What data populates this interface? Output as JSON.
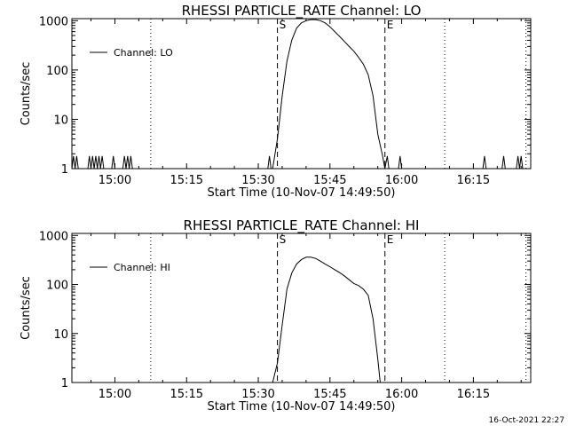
{
  "footer": {
    "timestamp": "16-Oct-2021 22:27"
  },
  "chart_data": [
    {
      "type": "line",
      "title": "RHESSI PARTICLE_RATE Channel: LO",
      "xlabel": "Start Time (10-Nov-07 14:49:50)",
      "ylabel": "Counts/sec",
      "yscale": "log",
      "xlim": [
        "14:51:00",
        "16:27:00"
      ],
      "ylim": [
        1,
        1100
      ],
      "x_ticks": [
        "15:00",
        "15:15",
        "15:30",
        "15:45",
        "16:00",
        "16:15"
      ],
      "y_ticks": [
        "1",
        "10",
        "100",
        "1000"
      ],
      "legend": {
        "position": "top-left",
        "label": "Channel: LO"
      },
      "markers": [
        {
          "time": "15:07:30",
          "style": "dotted",
          "label": ""
        },
        {
          "time": "15:34:00",
          "style": "dashed",
          "label": "S"
        },
        {
          "time": "15:56:30",
          "style": "dashed",
          "label": "E"
        },
        {
          "time": "16:09:00",
          "style": "dotted",
          "label": ""
        },
        {
          "time": "16:26:00",
          "style": "dotted",
          "label": ""
        }
      ],
      "series": [
        {
          "name": "Channel: LO",
          "points": [
            [
              "14:51:00",
              1
            ],
            [
              "14:51:20",
              1.8
            ],
            [
              "14:51:40",
              1
            ],
            [
              "14:52:00",
              1.8
            ],
            [
              "14:52:20",
              1
            ],
            [
              "14:54:20",
              1
            ],
            [
              "14:54:40",
              1.8
            ],
            [
              "14:55:00",
              1
            ],
            [
              "14:55:20",
              1.8
            ],
            [
              "14:55:40",
              1
            ],
            [
              "14:56:00",
              1.8
            ],
            [
              "14:56:20",
              1
            ],
            [
              "14:56:40",
              1.8
            ],
            [
              "14:57:00",
              1
            ],
            [
              "14:57:20",
              1.8
            ],
            [
              "14:57:40",
              1
            ],
            [
              "14:59:20",
              1
            ],
            [
              "14:59:40",
              1.8
            ],
            [
              "15:00:00",
              1
            ],
            [
              "15:01:40",
              1
            ],
            [
              "15:02:00",
              1.8
            ],
            [
              "15:02:20",
              1
            ],
            [
              "15:02:40",
              1.8
            ],
            [
              "15:03:00",
              1
            ],
            [
              "15:03:20",
              1.8
            ],
            [
              "15:03:40",
              1
            ],
            [
              "15:32:00",
              1
            ],
            [
              "15:32:20",
              1.8
            ],
            [
              "15:32:40",
              1
            ],
            [
              "15:33:00",
              1
            ],
            [
              "15:33:30",
              2
            ],
            [
              "15:34:00",
              4
            ],
            [
              "15:35:00",
              30
            ],
            [
              "15:36:00",
              150
            ],
            [
              "15:37:00",
              400
            ],
            [
              "15:38:00",
              700
            ],
            [
              "15:39:00",
              900
            ],
            [
              "15:40:00",
              1000
            ],
            [
              "15:41:00",
              1050
            ],
            [
              "15:42:00",
              1050
            ],
            [
              "15:43:00",
              1000
            ],
            [
              "15:44:00",
              900
            ],
            [
              "15:45:00",
              750
            ],
            [
              "15:46:00",
              600
            ],
            [
              "15:47:00",
              480
            ],
            [
              "15:48:00",
              380
            ],
            [
              "15:49:00",
              300
            ],
            [
              "15:50:00",
              240
            ],
            [
              "15:51:00",
              180
            ],
            [
              "15:52:00",
              130
            ],
            [
              "15:53:00",
              80
            ],
            [
              "15:54:00",
              30
            ],
            [
              "15:55:00",
              5
            ],
            [
              "15:56:00",
              1.8
            ],
            [
              "15:56:30",
              1
            ],
            [
              "15:57:00",
              1.8
            ],
            [
              "15:57:20",
              1
            ],
            [
              "15:59:20",
              1
            ],
            [
              "15:59:40",
              1.8
            ],
            [
              "16:00:00",
              1
            ],
            [
              "16:17:00",
              1
            ],
            [
              "16:17:20",
              1.8
            ],
            [
              "16:17:40",
              1
            ],
            [
              "16:21:00",
              1
            ],
            [
              "16:21:20",
              1.8
            ],
            [
              "16:21:40",
              1
            ],
            [
              "16:24:00",
              1
            ],
            [
              "16:24:20",
              1.8
            ],
            [
              "16:24:40",
              1
            ],
            [
              "16:25:00",
              1.8
            ],
            [
              "16:25:20",
              1
            ]
          ]
        }
      ]
    },
    {
      "type": "line",
      "title": "RHESSI PARTICLE_RATE Channel: HI",
      "xlabel": "Start Time (10-Nov-07 14:49:50)",
      "ylabel": "Counts/sec",
      "yscale": "log",
      "xlim": [
        "14:51:00",
        "16:27:00"
      ],
      "ylim": [
        1,
        1100
      ],
      "x_ticks": [
        "15:00",
        "15:15",
        "15:30",
        "15:45",
        "16:00",
        "16:15"
      ],
      "y_ticks": [
        "1",
        "10",
        "100",
        "1000"
      ],
      "legend": {
        "position": "top-left",
        "label": "Channel: HI"
      },
      "markers": [
        {
          "time": "15:07:30",
          "style": "dotted",
          "label": ""
        },
        {
          "time": "15:34:00",
          "style": "dashed",
          "label": "S"
        },
        {
          "time": "15:56:30",
          "style": "dashed",
          "label": "E"
        },
        {
          "time": "16:09:00",
          "style": "dotted",
          "label": ""
        },
        {
          "time": "16:26:00",
          "style": "dotted",
          "label": ""
        }
      ],
      "series": [
        {
          "name": "Channel: HI",
          "points": [
            [
              "15:33:00",
              1
            ],
            [
              "15:34:00",
              2.5
            ],
            [
              "15:35:00",
              15
            ],
            [
              "15:36:00",
              80
            ],
            [
              "15:37:00",
              170
            ],
            [
              "15:38:00",
              260
            ],
            [
              "15:39:00",
              320
            ],
            [
              "15:40:00",
              360
            ],
            [
              "15:41:00",
              360
            ],
            [
              "15:42:00",
              340
            ],
            [
              "15:43:00",
              300
            ],
            [
              "15:44:00",
              260
            ],
            [
              "15:45:00",
              230
            ],
            [
              "15:46:00",
              200
            ],
            [
              "15:47:00",
              175
            ],
            [
              "15:48:00",
              150
            ],
            [
              "15:49:00",
              125
            ],
            [
              "15:50:00",
              105
            ],
            [
              "15:51:00",
              95
            ],
            [
              "15:52:00",
              80
            ],
            [
              "15:53:00",
              60
            ],
            [
              "15:54:00",
              20
            ],
            [
              "15:55:00",
              3
            ],
            [
              "15:55:30",
              1
            ]
          ]
        }
      ]
    }
  ]
}
